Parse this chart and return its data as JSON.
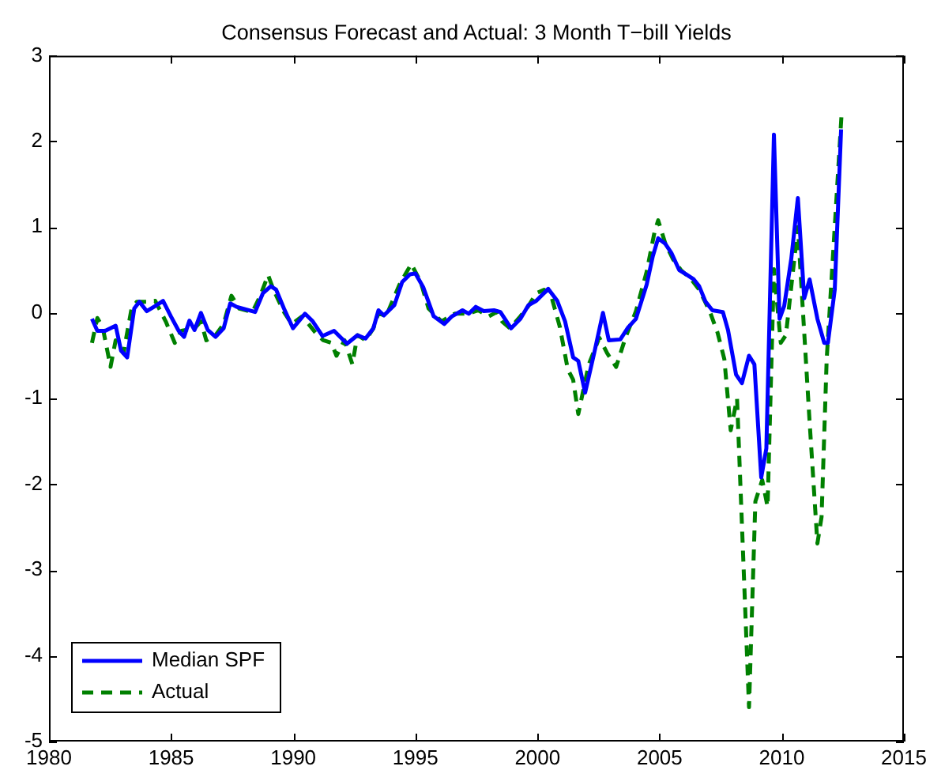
{
  "chart_data": {
    "type": "line",
    "title": "Consensus Forecast and Actual: 3 Month T−bill Yields",
    "xlim": [
      1980,
      2015
    ],
    "xticks": [
      1980,
      1985,
      1990,
      1995,
      2000,
      2005,
      2010,
      2015
    ],
    "ylim": [
      -5,
      3
    ],
    "yticks": [
      -5,
      -4,
      -3,
      -2,
      -1,
      0,
      1,
      2,
      3
    ],
    "grid": false,
    "legend": "bottom left",
    "series": [
      {
        "name": "Median SPF",
        "color": "#0000ff",
        "line_style": "solid",
        "x": [
          1981.76,
          1981.98,
          1982.3,
          1982.73,
          1982.95,
          1983.2,
          1983.49,
          1983.7,
          1984.0,
          1984.35,
          1984.67,
          1984.99,
          1985.31,
          1985.53,
          1985.75,
          1985.96,
          1986.22,
          1986.5,
          1986.82,
          1987.15,
          1987.42,
          1987.68,
          1988.44,
          1988.76,
          1989.08,
          1989.3,
          1989.62,
          1989.99,
          1990.48,
          1990.8,
          1991.2,
          1991.67,
          1992.2,
          1992.63,
          1992.96,
          1993.28,
          1993.49,
          1993.71,
          1994.14,
          1994.46,
          1994.78,
          1995.0,
          1995.32,
          1995.75,
          1996.18,
          1996.5,
          1996.93,
          1997.19,
          1997.47,
          1997.8,
          1998.22,
          1998.48,
          1998.92,
          1999.3,
          1999.63,
          1999.95,
          2000.44,
          2000.81,
          2001.13,
          2001.46,
          2001.67,
          2001.95,
          2002.32,
          2002.68,
          2002.92,
          2003.39,
          2003.71,
          2004.03,
          2004.47,
          2004.72,
          2004.94,
          2005.22,
          2005.48,
          2005.8,
          2006.08,
          2006.4,
          2006.62,
          2006.88,
          2007.16,
          2007.59,
          2007.8,
          2008.13,
          2008.37,
          2008.66,
          2008.88,
          2009.16,
          2009.37,
          2009.68,
          2009.91,
          2010.1,
          2010.39,
          2010.66,
          2010.92,
          2011.14,
          2011.46,
          2011.74,
          2011.89,
          2012.17,
          2012.43
        ],
        "values": [
          -0.07,
          -0.21,
          -0.21,
          -0.15,
          -0.44,
          -0.52,
          0.05,
          0.13,
          0.02,
          0.08,
          0.14,
          -0.04,
          -0.21,
          -0.28,
          -0.09,
          -0.2,
          0.0,
          -0.2,
          -0.28,
          -0.18,
          0.11,
          0.07,
          0.01,
          0.23,
          0.31,
          0.27,
          0.05,
          -0.18,
          -0.01,
          -0.1,
          -0.27,
          -0.21,
          -0.36,
          -0.26,
          -0.3,
          -0.18,
          0.03,
          -0.03,
          0.09,
          0.36,
          0.45,
          0.46,
          0.3,
          -0.04,
          -0.13,
          -0.04,
          0.03,
          -0.01,
          0.07,
          0.02,
          0.03,
          0.01,
          -0.18,
          -0.07,
          0.09,
          0.14,
          0.28,
          0.14,
          -0.1,
          -0.52,
          -0.56,
          -0.93,
          -0.47,
          0.0,
          -0.32,
          -0.31,
          -0.17,
          -0.07,
          0.33,
          0.66,
          0.87,
          0.81,
          0.7,
          0.5,
          0.45,
          0.39,
          0.31,
          0.13,
          0.03,
          0.01,
          -0.2,
          -0.72,
          -0.82,
          -0.5,
          -0.6,
          -1.92,
          -1.58,
          2.08,
          -0.07,
          0.08,
          0.63,
          1.34,
          0.17,
          0.39,
          -0.07,
          -0.35,
          -0.35,
          0.27,
          2.14
        ]
      },
      {
        "name": "Actual",
        "color": "#008000",
        "line_style": "dashed",
        "x": [
          1981.76,
          1981.98,
          1982.2,
          1982.52,
          1982.73,
          1983.05,
          1983.38,
          1983.6,
          1984.02,
          1984.35,
          1984.78,
          1985.15,
          1985.42,
          1985.96,
          1986.22,
          1986.44,
          1986.82,
          1987.15,
          1987.47,
          1987.79,
          1988.33,
          1988.65,
          1988.97,
          1989.19,
          1989.62,
          1989.94,
          1990.37,
          1990.91,
          1991.23,
          1991.56,
          1991.77,
          1992.1,
          1992.42,
          1992.63,
          1992.96,
          1993.28,
          1993.49,
          1993.8,
          1994.35,
          1994.83,
          1995.22,
          1995.54,
          1996.07,
          1996.61,
          1997.15,
          1997.58,
          1998.01,
          1998.34,
          1998.55,
          1998.87,
          1999.3,
          1999.63,
          1999.95,
          2000.27,
          2000.59,
          2000.92,
          2001.24,
          2001.46,
          2001.67,
          2002.1,
          2002.53,
          2002.85,
          2003.22,
          2003.6,
          2004.03,
          2004.47,
          2004.79,
          2004.94,
          2005.22,
          2005.54,
          2005.87,
          2006.3,
          2006.62,
          2007.05,
          2007.37,
          2007.65,
          2007.91,
          2008.17,
          2008.66,
          2008.92,
          2009.2,
          2009.42,
          2009.68,
          2009.96,
          2010.17,
          2010.66,
          2010.92,
          2011.14,
          2011.46,
          2011.63,
          2011.84,
          2012.45
        ],
        "values": [
          -0.35,
          -0.06,
          -0.17,
          -0.63,
          -0.32,
          -0.47,
          0.05,
          0.13,
          0.13,
          0.14,
          -0.1,
          -0.35,
          -0.21,
          -0.18,
          -0.1,
          -0.32,
          -0.26,
          -0.13,
          0.2,
          0.05,
          0.01,
          0.2,
          0.44,
          0.27,
          0.01,
          -0.13,
          -0.04,
          -0.23,
          -0.32,
          -0.35,
          -0.5,
          -0.32,
          -0.6,
          -0.26,
          -0.32,
          -0.18,
          0.0,
          -0.04,
          0.33,
          0.57,
          0.36,
          0.05,
          -0.1,
          -0.01,
          -0.01,
          0.03,
          -0.04,
          0.01,
          -0.1,
          -0.18,
          -0.04,
          0.08,
          0.23,
          0.27,
          0.17,
          -0.17,
          -0.66,
          -0.78,
          -1.18,
          -0.6,
          -0.29,
          -0.47,
          -0.63,
          -0.29,
          0.02,
          0.48,
          0.94,
          1.08,
          0.82,
          0.63,
          0.5,
          0.39,
          0.27,
          0.02,
          -0.23,
          -0.54,
          -1.37,
          -1.0,
          -4.6,
          -2.2,
          -1.95,
          -2.26,
          0.51,
          -0.35,
          -0.26,
          1.0,
          -0.23,
          -1.27,
          -2.69,
          -2.38,
          -0.54,
          2.32
        ]
      }
    ]
  }
}
